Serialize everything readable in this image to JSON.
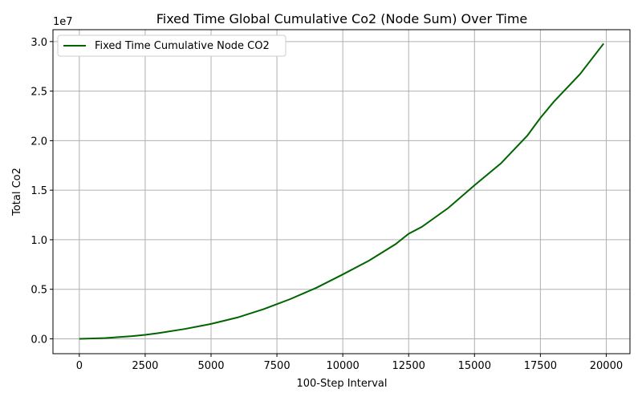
{
  "chart_data": {
    "type": "line",
    "title": "Fixed Time Global Cumulative Co2 (Node Sum) Over Time",
    "xlabel": "100-Step Interval",
    "ylabel": "Total Co2",
    "y_scale_note": "1e7",
    "xlim": [
      -1000,
      20900
    ],
    "ylim": [
      -1500000,
      31200000
    ],
    "x_ticks": [
      0,
      2500,
      5000,
      7500,
      10000,
      12500,
      15000,
      17500,
      20000
    ],
    "x_tick_labels": [
      "0",
      "2500",
      "5000",
      "7500",
      "10000",
      "12500",
      "15000",
      "17500",
      "20000"
    ],
    "y_ticks": [
      0,
      5000000,
      10000000,
      15000000,
      20000000,
      25000000,
      30000000
    ],
    "y_tick_labels": [
      "0.0",
      "0.5",
      "1.0",
      "1.5",
      "2.0",
      "2.5",
      "3.0"
    ],
    "grid": true,
    "legend": {
      "position": "upper-left"
    },
    "series": [
      {
        "name": "Fixed Time Cumulative Node CO2",
        "color": "#006400",
        "x": [
          0,
          1000,
          2000,
          2500,
          3000,
          4000,
          5000,
          6000,
          7000,
          7500,
          8000,
          9000,
          10000,
          11000,
          12000,
          12500,
          13000,
          14000,
          15000,
          16000,
          17000,
          17500,
          18000,
          19000,
          19900
        ],
        "y": [
          0,
          75000,
          270000,
          400000,
          570000,
          990000,
          1500000,
          2150000,
          3000000,
          3500000,
          4000000,
          5150000,
          6500000,
          7900000,
          9550000,
          10600000,
          11300000,
          13200000,
          15500000,
          17700000,
          20500000,
          22300000,
          23900000,
          26700000,
          29800000
        ]
      }
    ]
  }
}
